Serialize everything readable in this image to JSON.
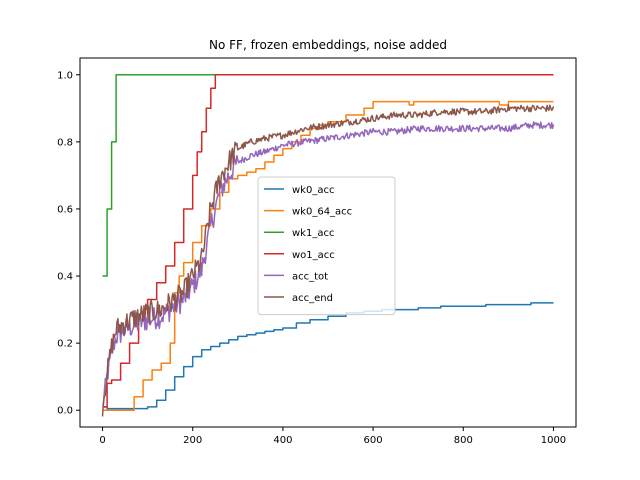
{
  "chart_data": {
    "type": "line",
    "title": "No FF, frozen embeddings, noise added",
    "xlabel": "",
    "ylabel": "",
    "xlim": [
      -50,
      1050
    ],
    "ylim": [
      -0.05,
      1.05
    ],
    "xticks": [
      0,
      200,
      400,
      600,
      800,
      1000
    ],
    "yticks": [
      0.0,
      0.2,
      0.4,
      0.6,
      0.8,
      1.0
    ],
    "xtick_labels": [
      "0",
      "200",
      "400",
      "600",
      "800",
      "1000"
    ],
    "ytick_labels": [
      "0.0",
      "0.2",
      "0.4",
      "0.6",
      "0.8",
      "1.0"
    ],
    "grid": false,
    "legend_position": "center-right",
    "series": [
      {
        "name": "wk0_acc",
        "color": "#1f77b4",
        "step": true,
        "x": [
          0,
          10,
          40,
          80,
          100,
          120,
          140,
          160,
          180,
          200,
          220,
          240,
          260,
          280,
          300,
          320,
          340,
          360,
          380,
          400,
          430,
          460,
          500,
          540,
          580,
          620,
          660,
          700,
          750,
          800,
          850,
          900,
          950,
          980,
          1000
        ],
        "y": [
          0.01,
          0.005,
          0.005,
          0.005,
          0.01,
          0.03,
          0.06,
          0.1,
          0.13,
          0.16,
          0.18,
          0.19,
          0.2,
          0.21,
          0.22,
          0.225,
          0.23,
          0.235,
          0.24,
          0.245,
          0.26,
          0.27,
          0.28,
          0.29,
          0.295,
          0.3,
          0.3,
          0.305,
          0.31,
          0.31,
          0.315,
          0.315,
          0.32,
          0.32,
          0.32
        ]
      },
      {
        "name": "wk0_64_acc",
        "color": "#ff7f0e",
        "step": true,
        "x": [
          0,
          70,
          90,
          110,
          130,
          150,
          160,
          170,
          180,
          200,
          220,
          240,
          260,
          280,
          300,
          320,
          340,
          360,
          380,
          400,
          420,
          440,
          460,
          480,
          500,
          520,
          540,
          560,
          580,
          600,
          650,
          680,
          690,
          700,
          800,
          880,
          900,
          1000
        ],
        "y": [
          0.0,
          0.04,
          0.09,
          0.12,
          0.14,
          0.2,
          0.35,
          0.4,
          0.44,
          0.5,
          0.55,
          0.6,
          0.65,
          0.69,
          0.7,
          0.71,
          0.72,
          0.74,
          0.76,
          0.78,
          0.8,
          0.82,
          0.84,
          0.85,
          0.86,
          0.86,
          0.88,
          0.88,
          0.9,
          0.92,
          0.92,
          0.91,
          0.92,
          0.92,
          0.92,
          0.91,
          0.92,
          0.92
        ]
      },
      {
        "name": "wk1_acc",
        "color": "#2ca02c",
        "step": true,
        "x": [
          0,
          5,
          10,
          15,
          20,
          25,
          30,
          100,
          200,
          400,
          600,
          800,
          1000
        ],
        "y": [
          0.4,
          0.4,
          0.6,
          0.6,
          0.8,
          0.8,
          1.0,
          1.0,
          1.0,
          1.0,
          1.0,
          1.0,
          1.0
        ]
      },
      {
        "name": "wo1_acc",
        "color": "#d62728",
        "step": true,
        "x": [
          0,
          10,
          20,
          40,
          60,
          80,
          100,
          120,
          140,
          160,
          180,
          200,
          210,
          220,
          230,
          240,
          250,
          300,
          400,
          600,
          800,
          1000
        ],
        "y": [
          0.01,
          0.08,
          0.09,
          0.14,
          0.2,
          0.27,
          0.33,
          0.38,
          0.43,
          0.5,
          0.6,
          0.7,
          0.77,
          0.83,
          0.9,
          0.96,
          1.0,
          1.0,
          1.0,
          1.0,
          1.0,
          1.0
        ]
      },
      {
        "name": "acc_tot",
        "color": "#9467bd",
        "noisy": true,
        "x": [
          0,
          10,
          20,
          30,
          50,
          80,
          100,
          130,
          150,
          180,
          200,
          220,
          240,
          260,
          280,
          300,
          330,
          360,
          400,
          450,
          500,
          550,
          600,
          650,
          700,
          750,
          800,
          850,
          900,
          950,
          1000
        ],
        "y": [
          0.01,
          0.1,
          0.17,
          0.22,
          0.24,
          0.26,
          0.27,
          0.28,
          0.3,
          0.33,
          0.37,
          0.42,
          0.55,
          0.65,
          0.7,
          0.74,
          0.76,
          0.77,
          0.79,
          0.8,
          0.81,
          0.82,
          0.83,
          0.83,
          0.84,
          0.84,
          0.84,
          0.84,
          0.84,
          0.85,
          0.85
        ]
      },
      {
        "name": "acc_end",
        "color": "#8c564b",
        "noisy": true,
        "x": [
          0,
          10,
          20,
          30,
          50,
          80,
          100,
          130,
          150,
          180,
          200,
          220,
          240,
          260,
          280,
          300,
          330,
          360,
          400,
          450,
          500,
          550,
          600,
          650,
          700,
          750,
          800,
          850,
          900,
          950,
          1000
        ],
        "y": [
          0.01,
          0.11,
          0.19,
          0.24,
          0.26,
          0.28,
          0.29,
          0.3,
          0.32,
          0.35,
          0.4,
          0.45,
          0.6,
          0.69,
          0.74,
          0.78,
          0.8,
          0.81,
          0.82,
          0.84,
          0.85,
          0.86,
          0.87,
          0.88,
          0.88,
          0.89,
          0.89,
          0.89,
          0.9,
          0.9,
          0.9
        ]
      }
    ]
  }
}
